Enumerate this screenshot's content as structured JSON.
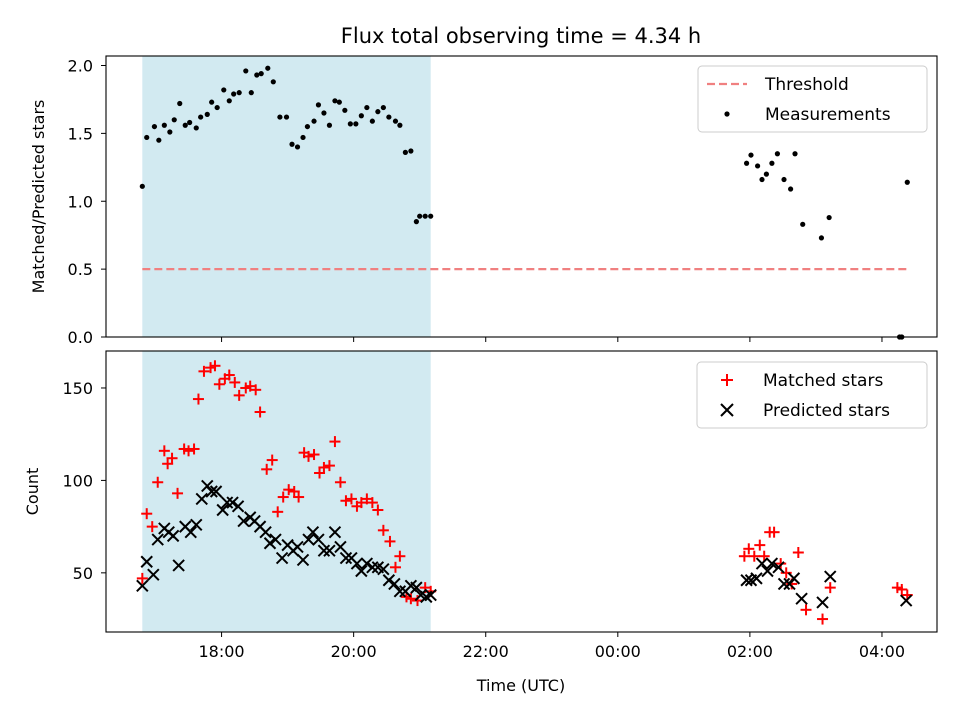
{
  "figure": {
    "title": "Flux total observing time = 4.34 h",
    "xlabel": "Time (UTC)"
  },
  "chart_data": [
    {
      "type": "scatter",
      "panel": "top",
      "ylabel": "Matched/Predicted stars",
      "ylim": [
        0,
        2.07
      ],
      "yticks": [
        "0.0",
        "0.5",
        "1.0",
        "1.5",
        "2.0"
      ],
      "xlim": [
        "16:15",
        "04:50"
      ],
      "xticks": [],
      "shaded_span": [
        "16:48",
        "21:10"
      ],
      "shade_color": "#add8e6",
      "series": [
        {
          "name": "Threshold",
          "kind": "dashed-line",
          "color": "#f08080",
          "x": [
            "16:48",
            "04:23"
          ],
          "y": [
            0.5,
            0.5
          ]
        },
        {
          "name": "Measurements",
          "kind": "points",
          "color": "#000000",
          "x": [
            "16:48",
            "16:52",
            "16:59",
            "17:03",
            "17:08",
            "17:13",
            "17:17",
            "17:22",
            "17:27",
            "17:31",
            "17:37",
            "17:41",
            "17:47",
            "17:51",
            "17:56",
            "18:02",
            "18:07",
            "18:11",
            "18:16",
            "18:22",
            "18:27",
            "18:32",
            "18:36",
            "18:42",
            "18:47",
            "18:53",
            "18:59",
            "19:04",
            "19:09",
            "19:14",
            "19:18",
            "19:24",
            "19:28",
            "19:33",
            "19:38",
            "19:43",
            "19:47",
            "19:52",
            "19:57",
            "20:02",
            "20:07",
            "20:12",
            "20:17",
            "20:22",
            "20:27",
            "20:32",
            "20:38",
            "20:42",
            "20:47",
            "20:52",
            "20:57",
            "21:00",
            "21:05",
            "21:10",
            "01:57",
            "02:01",
            "02:07",
            "02:11",
            "02:15",
            "02:20",
            "02:25",
            "02:31",
            "02:37",
            "02:41",
            "02:48",
            "03:05",
            "03:12",
            "04:16",
            "04:18",
            "04:23"
          ],
          "y": [
            1.11,
            1.47,
            1.55,
            1.45,
            1.56,
            1.51,
            1.6,
            1.72,
            1.56,
            1.58,
            1.54,
            1.62,
            1.64,
            1.73,
            1.69,
            1.82,
            1.74,
            1.79,
            1.8,
            1.96,
            1.8,
            1.93,
            1.94,
            1.98,
            1.88,
            1.62,
            1.62,
            1.42,
            1.4,
            1.47,
            1.55,
            1.59,
            1.71,
            1.65,
            1.56,
            1.74,
            1.73,
            1.67,
            1.57,
            1.57,
            1.63,
            1.69,
            1.59,
            1.66,
            1.69,
            1.62,
            1.59,
            1.56,
            1.36,
            1.37,
            0.85,
            0.89,
            0.89,
            0.89,
            1.28,
            1.34,
            1.26,
            1.16,
            1.2,
            1.28,
            1.35,
            1.16,
            1.09,
            1.35,
            0.83,
            0.73,
            0.88,
            0.0,
            0.0,
            1.14
          ]
        }
      ]
    },
    {
      "type": "scatter",
      "panel": "bottom",
      "ylabel": "Count",
      "ylim": [
        18,
        170
      ],
      "yticks": [
        "50",
        "100",
        "150"
      ],
      "xlim": [
        "16:15",
        "04:50"
      ],
      "xticks": [
        "18:00",
        "20:00",
        "22:00",
        "00:00",
        "02:00",
        "04:00"
      ],
      "shaded_span": [
        "16:48",
        "21:10"
      ],
      "shade_color": "#add8e6",
      "series": [
        {
          "name": "Matched stars",
          "marker": "+",
          "color": "#ff0000",
          "x": [
            "16:48",
            "16:52",
            "16:57",
            "17:02",
            "17:08",
            "17:11",
            "17:15",
            "17:20",
            "17:26",
            "17:30",
            "17:35",
            "17:39",
            "17:44",
            "17:50",
            "17:54",
            "17:58",
            "18:03",
            "18:07",
            "18:12",
            "18:16",
            "18:22",
            "18:26",
            "18:31",
            "18:35",
            "18:41",
            "18:46",
            "18:51",
            "18:56",
            "19:01",
            "19:06",
            "19:10",
            "19:15",
            "19:19",
            "19:24",
            "19:29",
            "19:33",
            "19:38",
            "19:43",
            "19:48",
            "19:53",
            "19:58",
            "20:03",
            "20:07",
            "20:12",
            "20:17",
            "20:22",
            "20:27",
            "20:33",
            "20:38",
            "20:42",
            "20:48",
            "20:52",
            "20:58",
            "21:05",
            "21:10",
            "01:55",
            "01:59",
            "02:04",
            "02:09",
            "02:13",
            "02:18",
            "02:22",
            "02:28",
            "02:33",
            "02:38",
            "02:44",
            "02:51",
            "03:06",
            "03:13",
            "04:14",
            "04:18",
            "04:23"
          ],
          "y": [
            47,
            82,
            75,
            99,
            116,
            109,
            112,
            93,
            117,
            116,
            117,
            144,
            159,
            161,
            162,
            152,
            155,
            157,
            153,
            146,
            150,
            151,
            149,
            137,
            106,
            111,
            83,
            91,
            95,
            94,
            91,
            115,
            113,
            114,
            104,
            107,
            108,
            121,
            99,
            89,
            90,
            86,
            88,
            90,
            88,
            84,
            73,
            67,
            53,
            59,
            37,
            36,
            35,
            42,
            40,
            59,
            63,
            59,
            65,
            59,
            72,
            72,
            55,
            50,
            44,
            61,
            30,
            25,
            42,
            42,
            41,
            38
          ]
        },
        {
          "name": "Predicted stars",
          "marker": "x",
          "color": "#000000",
          "x": [
            "16:48",
            "16:52",
            "16:58",
            "17:02",
            "17:08",
            "17:12",
            "17:16",
            "17:21",
            "17:27",
            "17:32",
            "17:37",
            "17:42",
            "17:47",
            "17:51",
            "17:55",
            "18:01",
            "18:05",
            "18:10",
            "18:15",
            "18:20",
            "18:26",
            "18:30",
            "18:35",
            "18:40",
            "18:44",
            "18:49",
            "18:55",
            "19:00",
            "19:05",
            "19:09",
            "19:14",
            "19:19",
            "19:23",
            "19:28",
            "19:33",
            "19:38",
            "19:43",
            "19:48",
            "19:53",
            "19:58",
            "20:03",
            "20:07",
            "20:12",
            "20:17",
            "20:22",
            "20:27",
            "20:32",
            "20:37",
            "20:42",
            "20:47",
            "20:52",
            "20:57",
            "21:01",
            "21:06",
            "21:10",
            "01:57",
            "02:01",
            "02:06",
            "02:11",
            "02:16",
            "02:20",
            "02:26",
            "02:31",
            "02:36",
            "02:40",
            "02:47",
            "03:06",
            "03:13",
            "04:22"
          ],
          "y": [
            43,
            56,
            49,
            68,
            74,
            72,
            70,
            54,
            75,
            72,
            76,
            90,
            97,
            94,
            94,
            84,
            88,
            88,
            86,
            78,
            80,
            78,
            75,
            72,
            66,
            68,
            58,
            65,
            62,
            64,
            57,
            68,
            72,
            68,
            62,
            62,
            72,
            64,
            58,
            58,
            55,
            51,
            55,
            53,
            53,
            52,
            46,
            44,
            40,
            40,
            43,
            42,
            38,
            37,
            38,
            46,
            46,
            47,
            55,
            51,
            55,
            53,
            44,
            44,
            47,
            36,
            34,
            48,
            35
          ]
        }
      ]
    }
  ]
}
